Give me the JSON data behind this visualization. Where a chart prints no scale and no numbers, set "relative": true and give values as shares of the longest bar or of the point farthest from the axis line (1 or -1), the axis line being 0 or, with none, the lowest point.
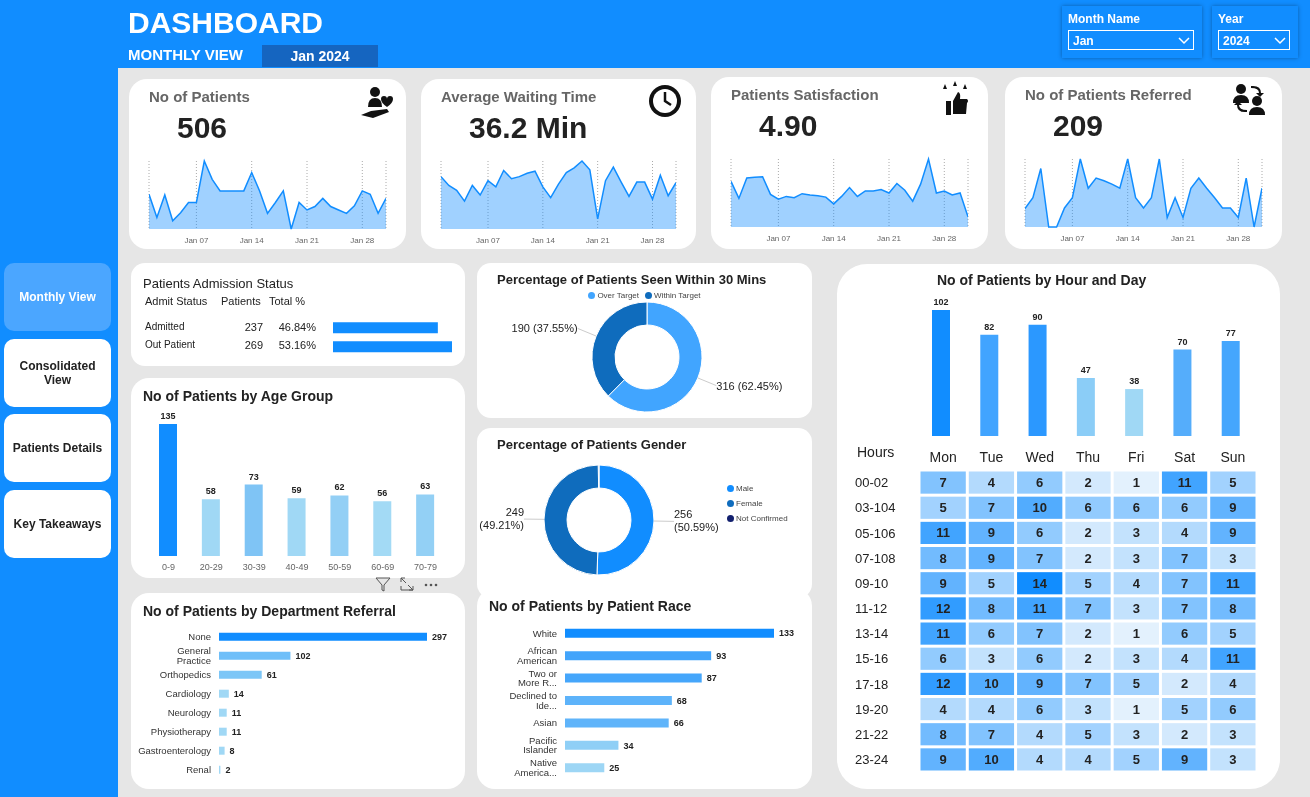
{
  "chart_data": [
    {
      "type": "other",
      "title": "DASHBOARD",
      "subtitle": "MONTHLY VIEW",
      "annotations": [
        "Jan 2024",
        "Month Name",
        "Jan",
        "Year",
        "2024"
      ]
    },
    {
      "type": "other",
      "annotations": [
        "Monthly View",
        "Consolidated View",
        "Patients Details",
        "Key Takeaways"
      ]
    },
    {
      "type": "area",
      "title": "No of Patients",
      "annotations": [
        "506"
      ],
      "relative": true,
      "grid": "x",
      "color": "#118dff",
      "categories": [
        null,
        null,
        null,
        null,
        null,
        null,
        "Jan 07",
        null,
        null,
        null,
        null,
        null,
        null,
        "Jan 14",
        null,
        null,
        null,
        null,
        null,
        null,
        "Jan 21",
        null,
        null,
        null,
        null,
        null,
        null,
        "Jan 28",
        null,
        null,
        null
      ],
      "values": [
        0.51,
        0.17,
        0.5,
        0.12,
        0.24,
        0.39,
        0.39,
        1,
        0.73,
        0.56,
        0.56,
        0.56,
        0.56,
        0.83,
        0.56,
        0.23,
        0.39,
        0.56,
        0,
        0.39,
        0.28,
        0.33,
        0.45,
        0.33,
        0.28,
        0.23,
        0.34,
        0.56,
        0.51,
        0.23,
        0.45
      ]
    },
    {
      "type": "area",
      "title": "Average Waiting Time",
      "annotations": [
        "36.2 Min"
      ],
      "relative": true,
      "grid": "x",
      "color": "#118dff",
      "categories": [
        null,
        null,
        null,
        null,
        null,
        null,
        "Jan 07",
        null,
        null,
        null,
        null,
        null,
        null,
        "Jan 14",
        null,
        null,
        null,
        null,
        null,
        null,
        "Jan 21",
        null,
        null,
        null,
        null,
        null,
        null,
        "Jan 28",
        null,
        null,
        null
      ],
      "values": [
        0.77,
        0.64,
        0.57,
        0.41,
        0.64,
        0.5,
        0.71,
        0.62,
        0.86,
        0.74,
        0.77,
        0.82,
        0.85,
        0.62,
        0.46,
        0.66,
        0.83,
        0.9,
        1,
        0.87,
        0.15,
        0.71,
        0.91,
        0.69,
        0.48,
        0.69,
        0.69,
        0.44,
        0.79,
        0.49,
        0.68
      ]
    },
    {
      "type": "area",
      "title": "Patients Satisfaction",
      "annotations": [
        "4.90"
      ],
      "relative": true,
      "grid": "x",
      "color": "#118dff",
      "categories": [
        null,
        null,
        null,
        null,
        null,
        null,
        "Jan 07",
        null,
        null,
        null,
        null,
        null,
        null,
        "Jan 14",
        null,
        null,
        null,
        null,
        null,
        null,
        "Jan 21",
        null,
        null,
        null,
        null,
        null,
        null,
        "Jan 28",
        null,
        null,
        null
      ],
      "values": [
        0.67,
        0.42,
        0.72,
        0.73,
        0.74,
        0.48,
        0.41,
        0.45,
        0.43,
        0.49,
        0.47,
        0.46,
        0.44,
        0.34,
        0.45,
        0.58,
        0.45,
        0.53,
        0.53,
        0.55,
        0.5,
        0.64,
        0.54,
        0.38,
        0.63,
        1,
        0.5,
        0.53,
        0.47,
        0.5,
        0.15
      ]
    },
    {
      "type": "area",
      "title": "No of Patients Referred",
      "annotations": [
        "209"
      ],
      "relative": true,
      "grid": "x",
      "color": "#118dff",
      "categories": [
        null,
        null,
        null,
        null,
        null,
        null,
        "Jan 07",
        null,
        null,
        null,
        null,
        null,
        null,
        "Jan 14",
        null,
        null,
        null,
        null,
        null,
        null,
        "Jan 21",
        null,
        null,
        null,
        null,
        null,
        null,
        "Jan 28",
        null,
        null,
        null
      ],
      "values": [
        0.27,
        0.43,
        0.86,
        0,
        0,
        0.28,
        0.43,
        1,
        0.57,
        0.72,
        0.68,
        0.63,
        0.57,
        1,
        0.43,
        0.28,
        0.43,
        1,
        0.14,
        0.43,
        0.14,
        0.57,
        0.72,
        0.57,
        0.43,
        0.28,
        0.28,
        0.14,
        0.72,
        0,
        0.57
      ]
    },
    {
      "type": "bar",
      "orientation": "horizontal",
      "title": "Patients Admission Status",
      "categories": [
        "Admitted",
        "Out Patient"
      ],
      "values": [
        237,
        269
      ],
      "color": "#118dff",
      "data_labels": true,
      "annotations": [
        "Admit Status",
        "Patients",
        "Total %",
        "46.84%",
        "53.16%"
      ]
    },
    {
      "type": "donut",
      "title": "Percentage of Patients Seen Within 30 Mins",
      "categories": [
        "Over Target",
        "Within Target"
      ],
      "values": [
        316,
        190
      ],
      "colors": [
        "#41a5ff",
        "#0f6cbd"
      ],
      "value_labels": [
        "316 (62.45%)",
        "190 (37.55%)"
      ],
      "legend": "top"
    },
    {
      "type": "bar",
      "title": "No of Patients by Hour and Day",
      "categories": [
        null,
        null,
        null,
        null,
        null,
        null,
        null
      ],
      "values": [
        102,
        82,
        90,
        47,
        38,
        70,
        77
      ],
      "colors": [
        "#118dff",
        "#41a4ff",
        "#2b98ff",
        "#8bcdf7",
        "#a0d8f5",
        "#55adfb",
        "#45a6fd"
      ],
      "data_labels": true,
      "tick_labels": false
    },
    {
      "type": "bar",
      "title": "No of Patients by Age Group",
      "categories": [
        "0-9",
        "20-29",
        "30-39",
        "40-49",
        "50-59",
        "60-69",
        "70-79"
      ],
      "values": [
        135,
        58,
        73,
        59,
        62,
        56,
        63
      ],
      "colors": [
        "#118dff",
        "#a0d8f5",
        "#7fc4f5",
        "#a0d8f5",
        "#93cff5",
        "#a3daf5",
        "#93d0f5"
      ],
      "data_labels": true
    },
    {
      "type": "donut",
      "title": "Percentage of Patients Gender",
      "categories": [
        "Male",
        "Female",
        "Not Confirmed"
      ],
      "values": [
        256,
        249,
        1
      ],
      "colors": [
        "#118dff",
        "#0f6cbd",
        "#12206e"
      ],
      "value_labels": [
        "256 (50.59%)",
        "249 (49.21%)",
        null
      ],
      "legend": "right"
    },
    {
      "type": "heatmap",
      "ylabel": "Hours",
      "categories": [
        "Mon",
        "Tue",
        "Wed",
        "Thu",
        "Fri",
        "Sat",
        "Sun"
      ],
      "y_categories": [
        "00-02",
        "03-104",
        "05-106",
        "07-108",
        "09-10",
        "11-12",
        "13-14",
        "15-16",
        "17-18",
        "19-20",
        "21-22",
        "23-24"
      ],
      "data_labels": true,
      "cells": [
        [
          7,
          4,
          6,
          2,
          1,
          11,
          5
        ],
        [
          5,
          7,
          10,
          6,
          6,
          6,
          9
        ],
        [
          11,
          9,
          6,
          2,
          3,
          4,
          9
        ],
        [
          8,
          9,
          7,
          2,
          3,
          7,
          3
        ],
        [
          9,
          5,
          14,
          5,
          4,
          7,
          11
        ],
        [
          12,
          8,
          11,
          7,
          3,
          7,
          8
        ],
        [
          11,
          6,
          7,
          2,
          1,
          6,
          5
        ],
        [
          6,
          3,
          6,
          2,
          3,
          4,
          11
        ],
        [
          12,
          10,
          9,
          7,
          5,
          2,
          4
        ],
        [
          4,
          4,
          6,
          3,
          1,
          5,
          6
        ],
        [
          8,
          7,
          4,
          5,
          3,
          2,
          3
        ],
        [
          9,
          10,
          4,
          4,
          5,
          9,
          3
        ]
      ]
    },
    {
      "type": "bar",
      "orientation": "horizontal",
      "title": "No of Patients by Department Referral",
      "categories": [
        "None",
        "General Practice",
        "Orthopedics",
        "Cardiology",
        "Neurology",
        "Physiotherapy",
        "Gastroenterology",
        "Renal"
      ],
      "values": [
        297,
        102,
        61,
        14,
        11,
        11,
        8,
        2
      ],
      "colors": [
        "#118dff",
        "#6fbff9",
        "#7cc6f7",
        "#a0d8f5",
        "#a0d8f5",
        "#a0d8f5",
        "#a0d8f5",
        "#a0d8f5"
      ],
      "data_labels": true
    },
    {
      "type": "bar",
      "orientation": "horizontal",
      "title": "No of Patients by Patient Race",
      "categories": [
        "White",
        "African American",
        "Two or More R...",
        "Declined to Ide...",
        "Asian",
        "Pacific Islander",
        "Native America..."
      ],
      "values": [
        133,
        93,
        87,
        68,
        66,
        34,
        25
      ],
      "colors": [
        "#118dff",
        "#42a4fb",
        "#45a6fb",
        "#5db3fa",
        "#5fb4fa",
        "#8fcff6",
        "#9dd6f5"
      ],
      "data_labels": true
    }
  ]
}
